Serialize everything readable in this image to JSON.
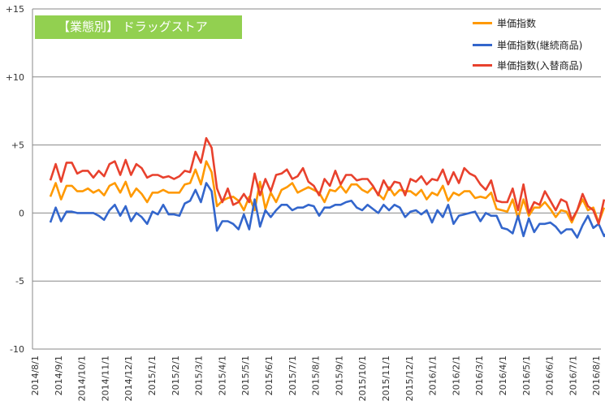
{
  "title": "【業態別】 ドラッグストア",
  "chart_data": {
    "type": "line",
    "title": "【業態別】 ドラッグストア",
    "xlabel": "",
    "ylabel": "",
    "ylim": [
      -10,
      15
    ],
    "yticks": [
      15,
      10,
      5,
      0,
      -5,
      -10
    ],
    "ytick_labels": [
      "+15",
      "+10",
      "+5",
      "0",
      "-5",
      "-10"
    ],
    "xtick_labels": [
      "2014/8/1",
      "2014/9/1",
      "2014/10/1",
      "2014/11/1",
      "2014/12/1",
      "2015/1/1",
      "2015/2/1",
      "2015/3/1",
      "2015/4/1",
      "2015/5/1",
      "2015/6/1",
      "2015/7/1",
      "2015/8/1",
      "2015/9/1",
      "2015/10/1",
      "2015/11/1",
      "2015/12/1",
      "2016/1/1",
      "2016/2/1",
      "2016/3/1",
      "2016/4/1",
      "2016/5/1",
      "2016/6/1",
      "2016/7/1",
      "2016/8/1"
    ],
    "x_frequency": "weekly",
    "grid": "horizontal",
    "legend_position": "top-right",
    "series": [
      {
        "name": "単価指数",
        "color": "#FF9900",
        "values": [
          1.2,
          2.2,
          1.0,
          2.0,
          2.0,
          1.6,
          1.6,
          1.8,
          1.5,
          1.7,
          1.3,
          2.0,
          2.2,
          1.5,
          2.3,
          1.2,
          1.8,
          1.4,
          0.8,
          1.5,
          1.5,
          1.7,
          1.5,
          1.5,
          1.5,
          2.1,
          2.2,
          3.2,
          2.1,
          3.8,
          3.0,
          0.5,
          0.9,
          1.1,
          1.2,
          0.9,
          0.2,
          1.2,
          0.2,
          2.3,
          0.3,
          1.5,
          0.8,
          1.7,
          1.9,
          2.2,
          1.5,
          1.7,
          1.9,
          1.7,
          1.5,
          0.8,
          1.7,
          1.6,
          2.0,
          1.5,
          2.1,
          2.1,
          1.7,
          1.5,
          1.9,
          1.4,
          1.0,
          1.9,
          1.3,
          1.7,
          1.6,
          1.6,
          1.3,
          1.7,
          1.0,
          1.5,
          1.3,
          2.0,
          0.9,
          1.5,
          1.3,
          1.6,
          1.6,
          1.1,
          1.2,
          1.1,
          1.5,
          0.3,
          0.2,
          0.1,
          1.0,
          -0.4,
          1.0,
          -0.2,
          0.4,
          0.4,
          0.8,
          0.3,
          -0.3,
          0.2,
          0.1,
          -0.7,
          0.2,
          1.0,
          0.2,
          0.4,
          -0.7,
          0.4
        ]
      },
      {
        "name": "単価指数(継続商品)",
        "color": "#3366CC",
        "values": [
          -0.7,
          0.4,
          -0.6,
          0.1,
          0.1,
          0.0,
          0.0,
          0.0,
          0.0,
          -0.2,
          -0.5,
          0.2,
          0.6,
          -0.2,
          0.5,
          -0.6,
          0.0,
          -0.3,
          -0.8,
          0.1,
          -0.1,
          0.6,
          -0.1,
          -0.1,
          -0.2,
          0.7,
          0.9,
          1.7,
          0.8,
          2.2,
          1.6,
          -1.3,
          -0.6,
          -0.6,
          -0.8,
          -1.2,
          -0.1,
          -1.2,
          1.0,
          -1.0,
          0.2,
          -0.3,
          0.2,
          0.6,
          0.6,
          0.2,
          0.4,
          0.4,
          0.6,
          0.5,
          -0.2,
          0.4,
          0.4,
          0.6,
          0.6,
          0.8,
          0.9,
          0.4,
          0.2,
          0.6,
          0.3,
          0.0,
          0.6,
          0.2,
          0.6,
          0.4,
          -0.3,
          0.1,
          0.2,
          -0.1,
          0.2,
          -0.7,
          0.2,
          -0.3,
          0.6,
          -0.8,
          -0.2,
          -0.1,
          0.0,
          0.1,
          -0.6,
          0.0,
          -0.2,
          -0.2,
          -1.1,
          -1.2,
          -1.5,
          -0.2,
          -1.7,
          -0.4,
          -1.4,
          -0.8,
          -0.8,
          -0.7,
          -1.0,
          -1.5,
          -1.2,
          -1.2,
          -1.8,
          -0.9,
          -0.2,
          -1.1,
          -0.8,
          -1.7,
          -1.2
        ]
      },
      {
        "name": "単価指数(入替商品)",
        "color": "#E8412D",
        "values": [
          2.4,
          3.6,
          2.3,
          3.7,
          3.7,
          2.9,
          3.1,
          3.1,
          2.6,
          3.1,
          2.7,
          3.6,
          3.8,
          2.8,
          3.9,
          2.8,
          3.6,
          3.3,
          2.6,
          2.8,
          2.8,
          2.6,
          2.7,
          2.5,
          2.7,
          3.1,
          3.0,
          4.5,
          3.7,
          5.5,
          4.8,
          1.8,
          0.8,
          1.8,
          0.6,
          0.8,
          1.4,
          0.8,
          2.9,
          1.3,
          2.5,
          1.6,
          2.8,
          2.9,
          3.2,
          2.5,
          2.7,
          3.3,
          2.3,
          2.0,
          1.3,
          2.5,
          2.0,
          3.1,
          2.1,
          2.8,
          2.8,
          2.4,
          2.5,
          2.5,
          2.0,
          1.3,
          2.4,
          1.7,
          2.3,
          2.2,
          1.3,
          2.5,
          2.3,
          2.7,
          2.1,
          2.5,
          2.4,
          3.2,
          2.1,
          3.0,
          2.2,
          3.3,
          2.9,
          2.7,
          2.1,
          1.7,
          2.4,
          0.9,
          0.8,
          0.8,
          1.8,
          0.2,
          2.1,
          0.0,
          0.8,
          0.6,
          1.6,
          0.9,
          0.2,
          1.0,
          0.8,
          -0.5,
          0.2,
          1.4,
          0.5,
          0.2,
          -0.8,
          1.0
        ]
      }
    ]
  }
}
